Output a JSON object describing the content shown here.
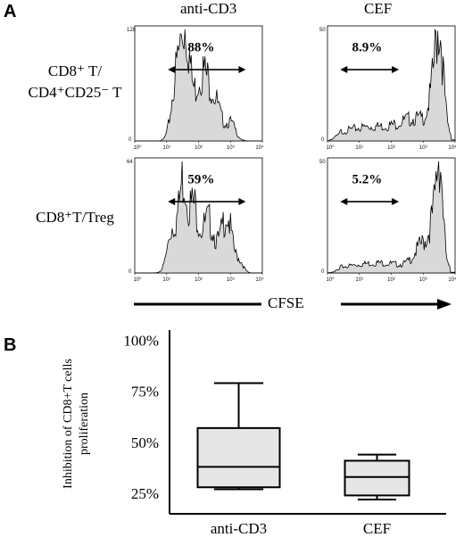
{
  "panel_a": {
    "letter": "A",
    "columns": [
      "anti-CD3",
      "CEF"
    ],
    "rows": [
      {
        "line1": "CD8⁺ T/",
        "line2": "CD4⁺CD25⁻ T"
      },
      {
        "line1": "CD8⁺T/Treg",
        "line2": ""
      }
    ],
    "cfse_label": "CFSE",
    "histograms": [
      {
        "percent": "88%",
        "ymax": "128",
        "profile": "anti_cd3"
      },
      {
        "percent": "8.9%",
        "ymax": "50",
        "profile": "cef"
      },
      {
        "percent": "59%",
        "ymax": "64",
        "profile": "anti_cd3_treg"
      },
      {
        "percent": "5.2%",
        "ymax": "50",
        "profile": "cef_treg"
      }
    ],
    "x_ticks": [
      "10⁰",
      "10¹",
      "10²",
      "10³",
      "10⁴"
    ],
    "fill_color": "#d9d9d9"
  },
  "panel_b": {
    "letter": "B"
  },
  "chart_data": {
    "type": "box",
    "title": "",
    "xlabel": "",
    "ylabel": "Inhibition of CD8+T cells proliferation",
    "ylabel_lines": [
      "Inhibition of CD8+T cells",
      "proliferation"
    ],
    "categories": [
      "anti-CD3",
      "CEF"
    ],
    "y_ticks": [
      25,
      50,
      75,
      100
    ],
    "y_tick_labels": [
      "25%",
      "50%",
      "75%",
      "100%"
    ],
    "ylim": [
      15,
      105
    ],
    "boxes": [
      {
        "category": "anti-CD3",
        "min": 27,
        "q1": 28,
        "median": 38,
        "q3": 57,
        "max": 79
      },
      {
        "category": "CEF",
        "min": 22,
        "q1": 24,
        "median": 33,
        "q3": 41,
        "max": 44
      }
    ],
    "box_fill": "#e6e6e6"
  }
}
